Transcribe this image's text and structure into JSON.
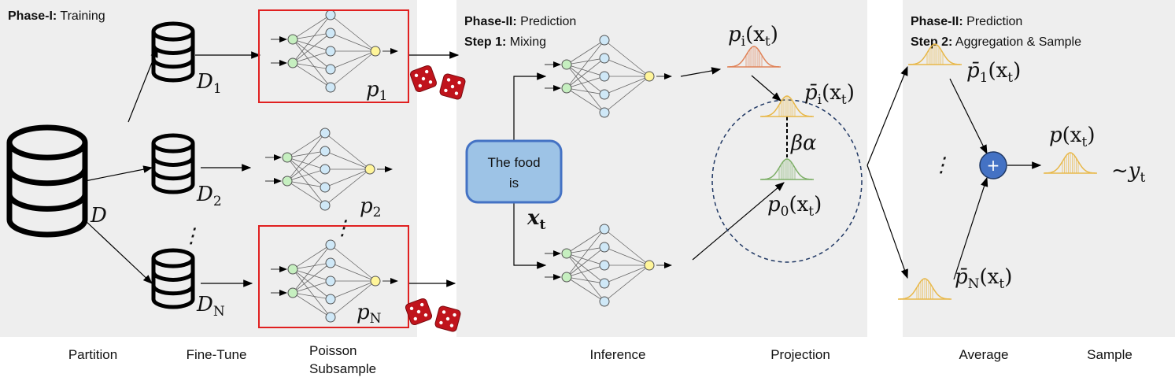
{
  "panels": [
    {
      "title_bold": "Phase-I:",
      "title": "Training"
    },
    {
      "title_bold": "Phase-II:",
      "title": "Prediction",
      "step_bold": "Step 1:",
      "step": "Mixing"
    },
    {
      "title_bold": "Phase-II:",
      "title": "Prediction",
      "step_bold": "Step 2:",
      "step": "Aggregation & Sample"
    }
  ],
  "datasets": {
    "full": "D",
    "d1": "D",
    "d1_sub": "1",
    "d2": "D",
    "d2_sub": "2",
    "dn": "D",
    "dn_sub": "N"
  },
  "models": {
    "p1": "p",
    "p1_sub": "1",
    "p2": "p",
    "p2_sub": "2",
    "pn": "p",
    "pn_sub": "N"
  },
  "input_box": {
    "line1": "The food",
    "line2": "is"
  },
  "input_symbol": {
    "x": "x",
    "sub": "t"
  },
  "distributions": {
    "pi": {
      "p": "p",
      "sub": "i",
      "arg": "(x",
      "arg_sub": "t",
      "close": ")"
    },
    "pbar_i": {
      "p": "p̄",
      "sub": "i",
      "arg": "(x",
      "arg_sub": "t",
      "close": ")"
    },
    "p0": {
      "p": "p",
      "sub": "0",
      "arg": "(x",
      "arg_sub": "t",
      "close": ")"
    },
    "pbar_1": {
      "p": "p̄",
      "sub": "1",
      "arg": "(x",
      "arg_sub": "t",
      "close": ")"
    },
    "pbar_n": {
      "p": "p̄",
      "sub": "N",
      "arg": "(x",
      "arg_sub": "t",
      "close": ")"
    },
    "p": {
      "p": "p",
      "arg": "(x",
      "arg_sub": "t",
      "close": ")"
    }
  },
  "beta_alpha": "βα",
  "sample": {
    "tilde": "~y",
    "sub": "t"
  },
  "ellipsis": "⋮",
  "plus": "+",
  "stages": [
    "Partition",
    "Fine-Tune",
    "Poisson",
    "Subsample",
    "Inference",
    "Projection",
    "Average",
    "Sample"
  ],
  "colors": {
    "panel": "#eeeeee",
    "highlight_box": "#e02020",
    "input_node": "#c6efc0",
    "hidden_node": "#cfe8f7",
    "output_node": "#fff59a",
    "textbox_fill": "#9dc3e6",
    "textbox_stroke": "#4472c4",
    "dist_pi": "#e0845a",
    "dist_pbar": "#e8b84a",
    "dist_p0": "#7fb069",
    "plus": "#4472c4",
    "die": "#c0141c"
  }
}
